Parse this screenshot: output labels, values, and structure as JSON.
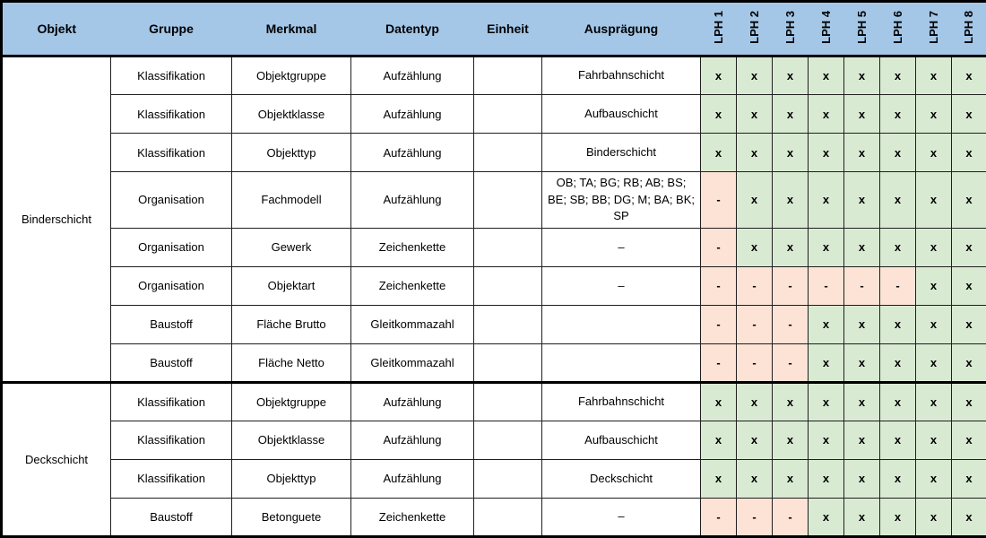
{
  "table": {
    "marks": {
      "yes": "x",
      "no": "-"
    },
    "colors": {
      "header_bg": "#a4c7e8",
      "yes_bg": "#d9ead3",
      "no_bg": "#fce3d6",
      "border": "#000000"
    },
    "columns": [
      {
        "label": "Objekt"
      },
      {
        "label": "Gruppe"
      },
      {
        "label": "Merkmal"
      },
      {
        "label": "Datentyp"
      },
      {
        "label": "Einheit"
      },
      {
        "label": "Ausprägung"
      }
    ],
    "lph_columns": [
      "LPH 1",
      "LPH 2",
      "LPH 3",
      "LPH 4",
      "LPH 5",
      "LPH 6",
      "LPH 7",
      "LPH 8"
    ],
    "groups": [
      {
        "objekt": "Binderschicht",
        "rows": [
          {
            "gruppe": "Klassifikation",
            "merkmal": "Objektgruppe",
            "datentyp": "Aufzählung",
            "einheit": "",
            "auspraegung": "Fahrbahnschicht",
            "lph": [
              "x",
              "x",
              "x",
              "x",
              "x",
              "x",
              "x",
              "x"
            ]
          },
          {
            "gruppe": "Klassifikation",
            "merkmal": "Objektklasse",
            "datentyp": "Aufzählung",
            "einheit": "",
            "auspraegung": "Aufbauschicht",
            "lph": [
              "x",
              "x",
              "x",
              "x",
              "x",
              "x",
              "x",
              "x"
            ]
          },
          {
            "gruppe": "Klassifikation",
            "merkmal": "Objekttyp",
            "datentyp": "Aufzählung",
            "einheit": "",
            "auspraegung": "Binderschicht",
            "lph": [
              "x",
              "x",
              "x",
              "x",
              "x",
              "x",
              "x",
              "x"
            ]
          },
          {
            "gruppe": "Organisation",
            "merkmal": "Fachmodell",
            "datentyp": "Aufzählung",
            "einheit": "",
            "auspraegung": "OB; TA; BG; RB; AB; BS; BE; SB; BB; DG; M; BA; BK; SP",
            "lph": [
              "-",
              "x",
              "x",
              "x",
              "x",
              "x",
              "x",
              "x"
            ]
          },
          {
            "gruppe": "Organisation",
            "merkmal": "Gewerk",
            "datentyp": "Zeichenkette",
            "einheit": "",
            "auspraegung": "–",
            "lph": [
              "-",
              "x",
              "x",
              "x",
              "x",
              "x",
              "x",
              "x"
            ]
          },
          {
            "gruppe": "Organisation",
            "merkmal": "Objektart",
            "datentyp": "Zeichenkette",
            "einheit": "",
            "auspraegung": "–",
            "lph": [
              "-",
              "-",
              "-",
              "-",
              "-",
              "-",
              "x",
              "x"
            ]
          },
          {
            "gruppe": "Baustoff",
            "merkmal": "Fläche Brutto",
            "datentyp": "Gleitkommazahl",
            "einheit": "",
            "auspraegung": "",
            "lph": [
              "-",
              "-",
              "-",
              "x",
              "x",
              "x",
              "x",
              "x"
            ]
          },
          {
            "gruppe": "Baustoff",
            "merkmal": "Fläche Netto",
            "datentyp": "Gleitkommazahl",
            "einheit": "",
            "auspraegung": "",
            "lph": [
              "-",
              "-",
              "-",
              "x",
              "x",
              "x",
              "x",
              "x"
            ]
          }
        ]
      },
      {
        "objekt": "Deckschicht",
        "rows": [
          {
            "gruppe": "Klassifikation",
            "merkmal": "Objektgruppe",
            "datentyp": "Aufzählung",
            "einheit": "",
            "auspraegung": "Fahrbahnschicht",
            "lph": [
              "x",
              "x",
              "x",
              "x",
              "x",
              "x",
              "x",
              "x"
            ]
          },
          {
            "gruppe": "Klassifikation",
            "merkmal": "Objektklasse",
            "datentyp": "Aufzählung",
            "einheit": "",
            "auspraegung": "Aufbauschicht",
            "lph": [
              "x",
              "x",
              "x",
              "x",
              "x",
              "x",
              "x",
              "x"
            ]
          },
          {
            "gruppe": "Klassifikation",
            "merkmal": "Objekttyp",
            "datentyp": "Aufzählung",
            "einheit": "",
            "auspraegung": "Deckschicht",
            "lph": [
              "x",
              "x",
              "x",
              "x",
              "x",
              "x",
              "x",
              "x"
            ]
          },
          {
            "gruppe": "Baustoff",
            "merkmal": "Betonguete",
            "datentyp": "Zeichenkette",
            "einheit": "",
            "auspraegung": "–",
            "lph": [
              "-",
              "-",
              "-",
              "x",
              "x",
              "x",
              "x",
              "x"
            ]
          }
        ]
      }
    ]
  }
}
